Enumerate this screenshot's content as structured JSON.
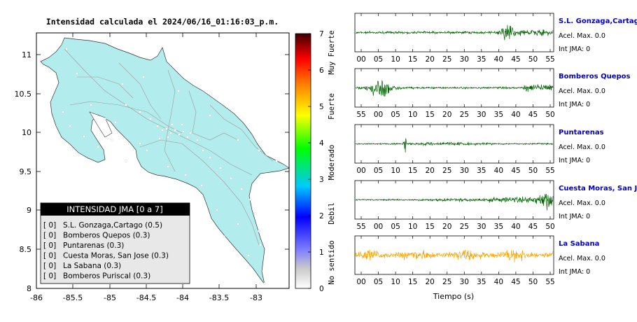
{
  "title": "Intensidad calculada el 2024/06/16_01:16:03_p.m.",
  "map": {
    "lon_ticks": [
      "-86",
      "-85.5",
      "-85",
      "-84.5",
      "-84",
      "-83.5",
      "-83"
    ],
    "lat_ticks": [
      "11",
      "10.5",
      "10",
      "9.5",
      "9",
      "8.5",
      "8"
    ],
    "land_color": "#b3ecec",
    "ocean_color": "#ffffff"
  },
  "legend": {
    "header": "INTENSIDAD JMA [0 a 7]",
    "items": [
      {
        "value": "[ 0]",
        "station": "S.L. Gonzaga,Cartago (0.5)"
      },
      {
        "value": "[ 0]",
        "station": "Bomberos Quepos (0.3)"
      },
      {
        "value": "[ 0]",
        "station": "Puntarenas (0.3)"
      },
      {
        "value": "[ 0]",
        "station": "Cuesta Moras, San Jose (0.3)"
      },
      {
        "value": "[ 0]",
        "station": "La Sabana (0.3)"
      },
      {
        "value": "[ 0]",
        "station": "Bomberos Puriscal (0.3)"
      }
    ]
  },
  "colorbar": {
    "ticks": [
      "7",
      "6",
      "5",
      "4",
      "3",
      "2",
      "1",
      "0"
    ],
    "categories": [
      "Muy Fuerte",
      "Fuerte",
      "Moderado",
      "Debil",
      "No sentido"
    ]
  },
  "stations": [
    {
      "name": "S.L. Gonzaga,Cartago",
      "accel": "Acel. Max. 0.0",
      "jma": "Int JMA: 0",
      "color": "#006400",
      "ticks": [
        "00",
        "05",
        "10",
        "15",
        "20",
        "25",
        "30",
        "35",
        "40",
        "45",
        "50",
        "55"
      ]
    },
    {
      "name": "Bomberos Quepos",
      "accel": "Acel. Max. 0.0",
      "jma": "Int JMA: 0",
      "color": "#006400",
      "ticks": [
        "55",
        "00",
        "05",
        "10",
        "15",
        "20",
        "25",
        "30",
        "35",
        "40",
        "45",
        "50"
      ]
    },
    {
      "name": "Puntarenas",
      "accel": "Acel. Max. 0.0",
      "jma": "Int JMA: 0",
      "color": "#006400",
      "ticks": [
        "00",
        "05",
        "10",
        "15",
        "20",
        "25",
        "30",
        "35",
        "40",
        "45",
        "50",
        "55"
      ]
    },
    {
      "name": "Cuesta Moras, San Jose",
      "accel": "Acel. Max. 0.0",
      "jma": "Int JMA: 0",
      "color": "#006400",
      "ticks": [
        "55",
        "00",
        "05",
        "10",
        "15",
        "20",
        "25",
        "30",
        "35",
        "40",
        "45",
        "50"
      ]
    },
    {
      "name": "La Sabana",
      "accel": "Acel. Max. 0.0",
      "jma": "Int JMA: 0",
      "color": "#ffa500",
      "ticks": [
        "00",
        "05",
        "10",
        "15",
        "20",
        "25",
        "30",
        "35",
        "40",
        "45",
        "50",
        "55"
      ]
    }
  ],
  "xlabel": "Tiempo (s)"
}
